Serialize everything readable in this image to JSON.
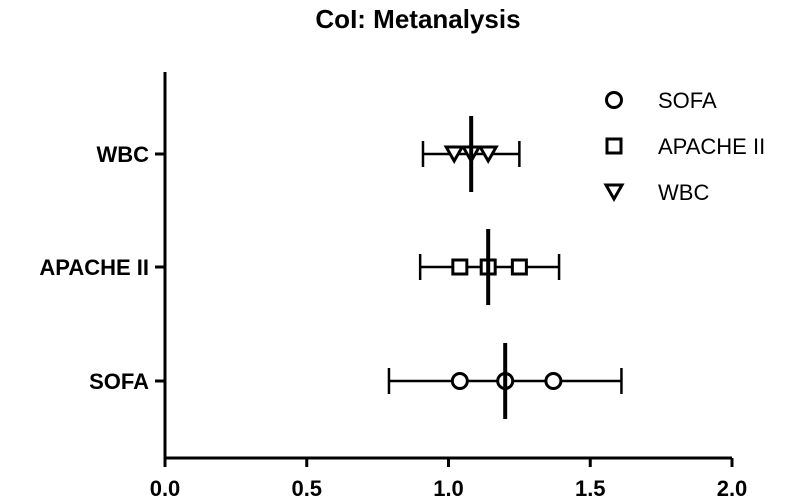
{
  "chart_data": {
    "type": "scatter",
    "title": "CoI: Metanalysis",
    "xlabel": "",
    "ylabel": "",
    "xlim": [
      0.0,
      2.0
    ],
    "xticks": [
      0.0,
      0.5,
      1.0,
      1.5,
      2.0
    ],
    "xtick_labels": [
      "0.0",
      "0.5",
      "1.0",
      "1.5",
      "2.0"
    ],
    "categories": [
      "WBC",
      "APACHE II",
      "SOFA"
    ],
    "series": [
      {
        "name": "SOFA",
        "marker": "circle",
        "category": "SOFA",
        "points": [
          1.04,
          1.2,
          1.37
        ],
        "mean": 1.2,
        "ci": [
          0.79,
          1.61
        ]
      },
      {
        "name": "APACHE II",
        "marker": "square",
        "category": "APACHE II",
        "points": [
          1.04,
          1.14,
          1.25
        ],
        "mean": 1.14,
        "ci": [
          0.9,
          1.39
        ]
      },
      {
        "name": "WBC",
        "marker": "triangle-down",
        "category": "WBC",
        "points": [
          1.02,
          1.08,
          1.14
        ],
        "mean": 1.08,
        "ci": [
          0.91,
          1.25
        ]
      }
    ],
    "legend_position": "top-right",
    "grid": false
  },
  "colors": {
    "ink": "#000000",
    "background": "#ffffff"
  }
}
